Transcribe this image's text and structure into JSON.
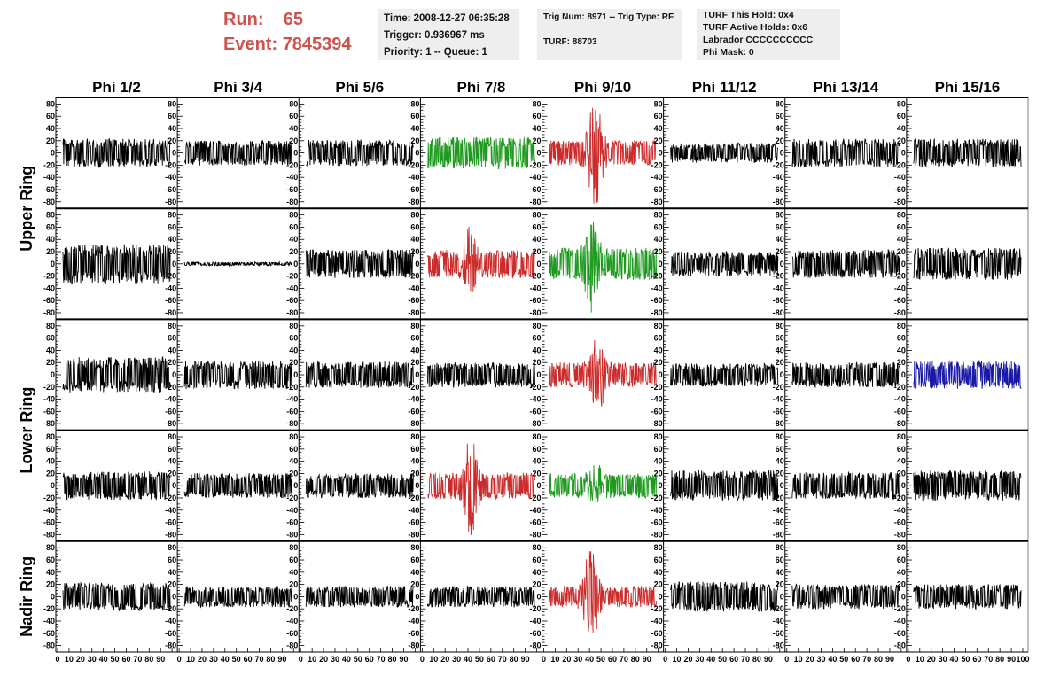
{
  "header": {
    "run_label": "Run:",
    "run_value": "65",
    "event_label": "Event:",
    "event_value": "7845394"
  },
  "info_box_1": {
    "time": "Time: 2008-12-27 06:35:28",
    "trigger": "Trigger: 0.936967 ms",
    "priority": "Priority: 1 -- Queue: 1"
  },
  "info_box_2": {
    "trig": "Trig Num: 8971 -- Trig Type: RF",
    "turf": "TURF: 88703"
  },
  "info_box_3": {
    "hold": "TURF This Hold: 0x4",
    "active": "TURF Active Holds: 0x6",
    "labrador": "Labrador CCCCCCCCCC",
    "phi_mask": "Phi Mask: 0"
  },
  "colors": {
    "red": "#cc2b2b",
    "green": "#1e9a1e",
    "blue": "#1a1aa8",
    "black": "#000000",
    "header_red": "#d0524e"
  },
  "chart_data": {
    "type": "line",
    "columns": [
      "Phi 1/2",
      "Phi 3/4",
      "Phi 5/6",
      "Phi 7/8",
      "Phi 9/10",
      "Phi 11/12",
      "Phi 13/14",
      "Phi 15/16"
    ],
    "ring_labels": [
      "Upper Ring",
      "Lower Ring",
      "Nadir Ring"
    ],
    "y_ticks": [
      80,
      60,
      40,
      20,
      0,
      -20,
      -40,
      -60,
      -80
    ],
    "x_ticks": [
      0,
      10,
      20,
      30,
      40,
      50,
      60,
      70,
      80,
      90,
      100
    ],
    "ylim": [
      -85,
      85
    ],
    "xlim": [
      0,
      100
    ],
    "panels": [
      [
        {
          "color": "black",
          "amp": 16,
          "burst": 0
        },
        {
          "color": "black",
          "amp": 14,
          "burst": 0
        },
        {
          "color": "black",
          "amp": 15,
          "burst": 0
        },
        {
          "color": "green",
          "amp": 18,
          "burst": 0
        },
        {
          "color": "red",
          "amp": 14,
          "burst": 80
        },
        {
          "color": "black",
          "amp": 11,
          "burst": 0
        },
        {
          "color": "black",
          "amp": 16,
          "burst": 0
        },
        {
          "color": "black",
          "amp": 16,
          "burst": 0
        }
      ],
      [
        {
          "color": "black",
          "amp": 22,
          "burst": 0
        },
        {
          "color": "black",
          "amp": 2,
          "burst": 0
        },
        {
          "color": "black",
          "amp": 16,
          "burst": 0
        },
        {
          "color": "red",
          "amp": 16,
          "burst": 45
        },
        {
          "color": "green",
          "amp": 18,
          "burst": 60
        },
        {
          "color": "black",
          "amp": 14,
          "burst": 0
        },
        {
          "color": "black",
          "amp": 16,
          "burst": 0
        },
        {
          "color": "black",
          "amp": 18,
          "burst": 0
        }
      ],
      [
        {
          "color": "black",
          "amp": 20,
          "burst": 0
        },
        {
          "color": "black",
          "amp": 16,
          "burst": 0
        },
        {
          "color": "black",
          "amp": 15,
          "burst": 0
        },
        {
          "color": "black",
          "amp": 14,
          "burst": 0
        },
        {
          "color": "red",
          "amp": 14,
          "burst": 50
        },
        {
          "color": "black",
          "amp": 13,
          "burst": 0
        },
        {
          "color": "black",
          "amp": 14,
          "burst": 0
        },
        {
          "color": "blue",
          "amp": 16,
          "burst": 0
        }
      ],
      [
        {
          "color": "black",
          "amp": 16,
          "burst": 0
        },
        {
          "color": "black",
          "amp": 14,
          "burst": 0
        },
        {
          "color": "black",
          "amp": 14,
          "burst": 0
        },
        {
          "color": "red",
          "amp": 15,
          "burst": 65
        },
        {
          "color": "green",
          "amp": 14,
          "burst": 25
        },
        {
          "color": "black",
          "amp": 17,
          "burst": 0
        },
        {
          "color": "black",
          "amp": 15,
          "burst": 0
        },
        {
          "color": "black",
          "amp": 17,
          "burst": 0
        }
      ],
      [
        {
          "color": "black",
          "amp": 16,
          "burst": 0
        },
        {
          "color": "black",
          "amp": 12,
          "burst": 0
        },
        {
          "color": "black",
          "amp": 12,
          "burst": 0
        },
        {
          "color": "black",
          "amp": 12,
          "burst": 0
        },
        {
          "color": "red",
          "amp": 12,
          "burst": 70
        },
        {
          "color": "black",
          "amp": 17,
          "burst": 0
        },
        {
          "color": "black",
          "amp": 14,
          "burst": 0
        },
        {
          "color": "black",
          "amp": 14,
          "burst": 0
        }
      ]
    ]
  }
}
